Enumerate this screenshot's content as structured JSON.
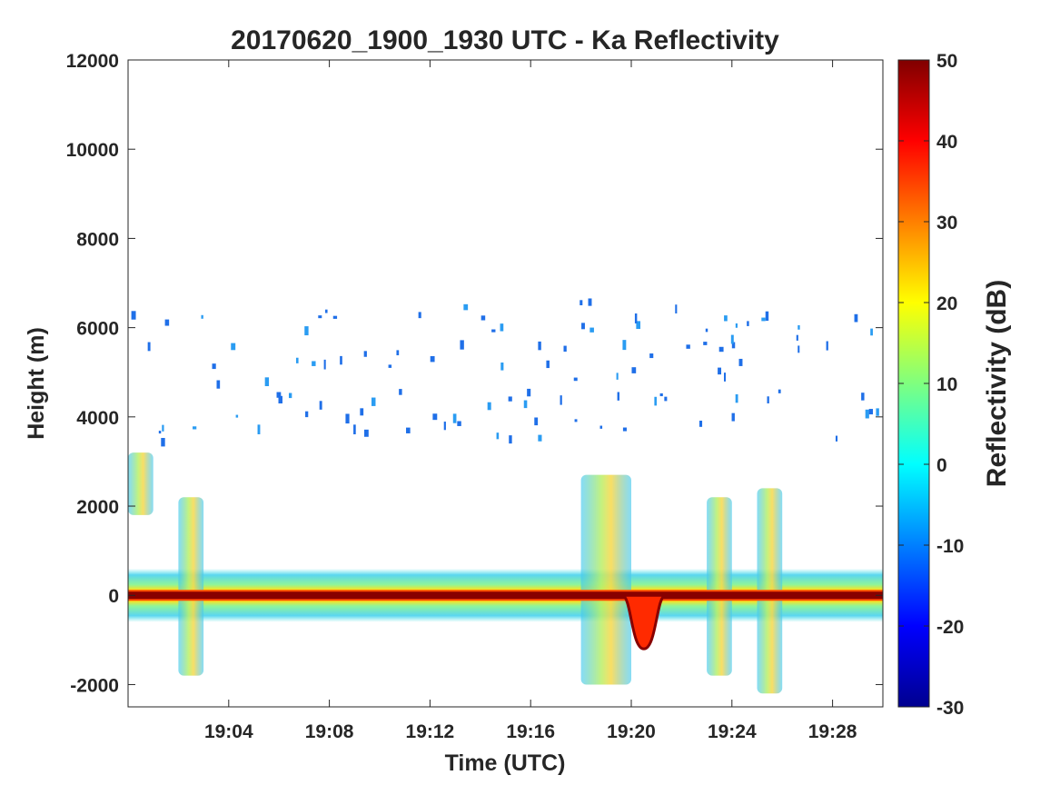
{
  "chart_data": {
    "type": "heatmap",
    "title": "20170620_1900_1930 UTC - Ka Reflectivity",
    "xlabel": "Time (UTC)",
    "ylabel": "Height (m)",
    "xlim": [
      "19:00",
      "19:30"
    ],
    "ylim": [
      -2500,
      12000
    ],
    "x_ticks": [
      "19:04",
      "19:08",
      "19:12",
      "19:16",
      "19:20",
      "19:24",
      "19:28"
    ],
    "y_ticks": [
      -2000,
      0,
      2000,
      4000,
      6000,
      8000,
      10000,
      12000
    ],
    "colorbar": {
      "label": "Reflectivity (dB)",
      "range": [
        -30,
        50
      ],
      "ticks": [
        -30,
        -20,
        -10,
        0,
        10,
        20,
        30,
        40,
        50
      ],
      "colormap": "jet"
    },
    "features": [
      {
        "description": "surface return band",
        "x_range": [
          "19:00",
          "19:30"
        ],
        "height_m": 0,
        "reflectivity_db": 50
      },
      {
        "description": "surface return depression",
        "x_range": [
          "19:20",
          "19:21"
        ],
        "height_m": -1200,
        "reflectivity_db": 40
      },
      {
        "description": "low-level echo layer",
        "x_range": [
          "19:00",
          "19:30"
        ],
        "height_range_m": [
          -600,
          600
        ],
        "reflectivity_db": 5
      },
      {
        "description": "echo column",
        "x_range": [
          "19:18",
          "19:20"
        ],
        "height_range_m": [
          -2000,
          2700
        ],
        "reflectivity_db": 15
      },
      {
        "description": "echo column",
        "x_range": [
          "19:23",
          "19:24"
        ],
        "height_range_m": [
          -1800,
          2200
        ],
        "reflectivity_db": 15
      },
      {
        "description": "echo column",
        "x_range": [
          "19:25",
          "19:26"
        ],
        "height_range_m": [
          -2200,
          2400
        ],
        "reflectivity_db": 20
      },
      {
        "description": "echo patch",
        "x_range": [
          "19:00",
          "19:01"
        ],
        "height_range_m": [
          1800,
          3200
        ],
        "reflectivity_db": 5
      },
      {
        "description": "echo patch",
        "x_range": [
          "19:02",
          "19:03"
        ],
        "height_range_m": [
          -1800,
          2200
        ],
        "reflectivity_db": 8
      },
      {
        "description": "scattered noise speckles",
        "x_range": [
          "19:00",
          "19:30"
        ],
        "height_range_m": [
          3500,
          6700
        ],
        "reflectivity_db": -18
      }
    ]
  }
}
